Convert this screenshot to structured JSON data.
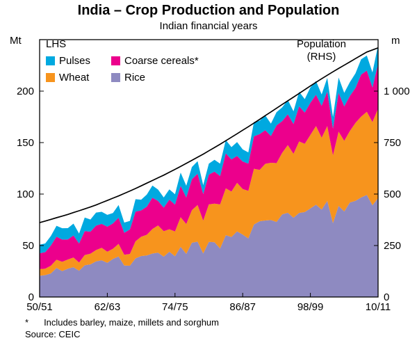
{
  "header": {
    "title": "India – Crop Production and Population",
    "subtitle": "Indian financial years"
  },
  "axes": {
    "lhs_unit": "Mt",
    "rhs_unit": "m"
  },
  "legend": {
    "lhs_label": "LHS",
    "items": [
      {
        "label": "Pulses",
        "color": "#00a9e0"
      },
      {
        "label": "Coarse cereals*",
        "color": "#ec008c"
      },
      {
        "label": "Wheat",
        "color": "#f7941d"
      },
      {
        "label": "Rice",
        "color": "#8e8ac1"
      }
    ],
    "population_label": "Population",
    "population_sub": "(RHS)"
  },
  "footnotes": {
    "marker": "*",
    "note": "Includes barley, maize, millets and sorghum",
    "source": "Source: CEIC"
  },
  "chart_data": {
    "type": "area",
    "stacked": true,
    "title": "India – Crop Production and Population",
    "subtitle": "Indian financial years",
    "x_description": "Indian financial years, one point per year from 1950/51 to 2010/11",
    "x_count": 61,
    "x_tick_positions": [
      0,
      12,
      24,
      36,
      48,
      60
    ],
    "x_tick_labels": [
      "50/51",
      "62/63",
      "74/75",
      "86/87",
      "98/99",
      "10/11"
    ],
    "lhs": {
      "unit": "Mt",
      "min": 0,
      "max": 250,
      "tick_values": [
        0,
        50,
        100,
        150,
        200
      ],
      "tick_labels": [
        "0",
        "50",
        "100",
        "150",
        "200"
      ]
    },
    "rhs": {
      "unit": "m",
      "min": 0,
      "max": 1250,
      "tick_values": [
        0,
        250,
        500,
        750,
        1000
      ],
      "tick_labels": [
        "0",
        "250",
        "500",
        "750",
        "1 000"
      ]
    },
    "grid": false,
    "series": [
      {
        "name": "Rice",
        "kind": "area",
        "axis": "lhs",
        "color": "#8e8ac1",
        "values": [
          20.6,
          21.3,
          22.9,
          28.2,
          25.2,
          27.6,
          29.0,
          25.5,
          30.8,
          31.7,
          34.6,
          35.7,
          33.2,
          37.0,
          39.3,
          30.6,
          30.4,
          37.6,
          39.8,
          40.4,
          42.2,
          43.1,
          39.2,
          44.0,
          39.6,
          48.7,
          41.9,
          52.7,
          53.8,
          42.3,
          53.6,
          53.2,
          47.1,
          60.1,
          58.3,
          63.8,
          60.6,
          56.9,
          70.5,
          73.6,
          74.3,
          74.7,
          72.9,
          80.3,
          81.8,
          77.0,
          81.7,
          82.5,
          86.1,
          89.7,
          85.0,
          93.3,
          71.8,
          88.5,
          83.1,
          91.8,
          93.4,
          96.7,
          99.2,
          89.1,
          96.0
        ]
      },
      {
        "name": "Wheat",
        "kind": "area",
        "axis": "lhs",
        "color": "#f7941d",
        "values": [
          6.5,
          6.2,
          7.5,
          8.0,
          9.0,
          8.8,
          9.4,
          8.0,
          10.0,
          10.3,
          11.0,
          12.1,
          10.8,
          9.9,
          12.3,
          10.4,
          11.4,
          16.5,
          18.7,
          20.1,
          23.8,
          26.4,
          24.7,
          21.8,
          24.1,
          28.8,
          29.0,
          31.7,
          35.5,
          31.8,
          36.3,
          37.5,
          42.8,
          45.5,
          44.1,
          47.1,
          44.3,
          46.2,
          54.1,
          49.9,
          55.1,
          55.7,
          57.2,
          59.8,
          65.8,
          62.1,
          69.4,
          66.3,
          71.3,
          76.4,
          69.7,
          72.8,
          65.8,
          72.2,
          68.6,
          69.4,
          75.8,
          78.6,
          80.7,
          80.8,
          86.9
        ]
      },
      {
        "name": "Coarse cereals",
        "kind": "area",
        "axis": "lhs",
        "color": "#ec008c",
        "values": [
          15.4,
          16.1,
          19.7,
          22.4,
          21.6,
          19.5,
          21.4,
          18.5,
          23.2,
          21.5,
          23.7,
          23.2,
          24.3,
          24.6,
          25.4,
          21.4,
          23.8,
          28.8,
          25.6,
          27.3,
          30.5,
          23.8,
          22.9,
          28.8,
          26.1,
          30.4,
          25.8,
          30.0,
          30.4,
          26.0,
          29.0,
          31.1,
          27.7,
          33.9,
          31.2,
          26.2,
          26.8,
          26.4,
          31.5,
          34.8,
          32.7,
          26.0,
          36.6,
          30.8,
          29.9,
          29.0,
          34.1,
          30.4,
          31.3,
          30.3,
          31.1,
          33.4,
          26.1,
          37.6,
          33.5,
          34.1,
          33.9,
          40.8,
          40.0,
          33.6,
          43.4
        ]
      },
      {
        "name": "Pulses",
        "kind": "area",
        "axis": "lhs",
        "color": "#00a9e0",
        "values": [
          8.4,
          8.4,
          9.2,
          10.6,
          11.0,
          11.0,
          11.5,
          9.6,
          13.2,
          11.8,
          12.7,
          11.8,
          11.5,
          10.1,
          12.4,
          9.9,
          8.3,
          12.1,
          10.4,
          11.7,
          11.8,
          11.1,
          9.9,
          10.0,
          10.0,
          13.0,
          11.4,
          11.9,
          12.2,
          8.6,
          10.6,
          11.5,
          11.9,
          12.9,
          12.0,
          13.4,
          11.7,
          11.0,
          13.9,
          12.9,
          14.3,
          12.0,
          12.8,
          13.3,
          14.0,
          12.3,
          14.2,
          13.0,
          14.9,
          13.4,
          11.0,
          13.4,
          11.1,
          14.9,
          13.1,
          13.4,
          14.2,
          14.8,
          14.6,
          14.7,
          18.2
        ]
      },
      {
        "name": "Population",
        "kind": "line",
        "axis": "rhs",
        "color": "#000000",
        "values": [
          361,
          369,
          377,
          385,
          393,
          401,
          410,
          419,
          428,
          437,
          447,
          458,
          469,
          480,
          491,
          503,
          515,
          527,
          540,
          553,
          566,
          579,
          592,
          606,
          620,
          634,
          649,
          664,
          679,
          694,
          710,
          726,
          742,
          759,
          776,
          793,
          810,
          827,
          845,
          863,
          881,
          899,
          917,
          935,
          953,
          971,
          989,
          1007,
          1025,
          1043,
          1060,
          1077,
          1094,
          1110,
          1126,
          1142,
          1158,
          1174,
          1190,
          1200,
          1210
        ]
      }
    ]
  }
}
